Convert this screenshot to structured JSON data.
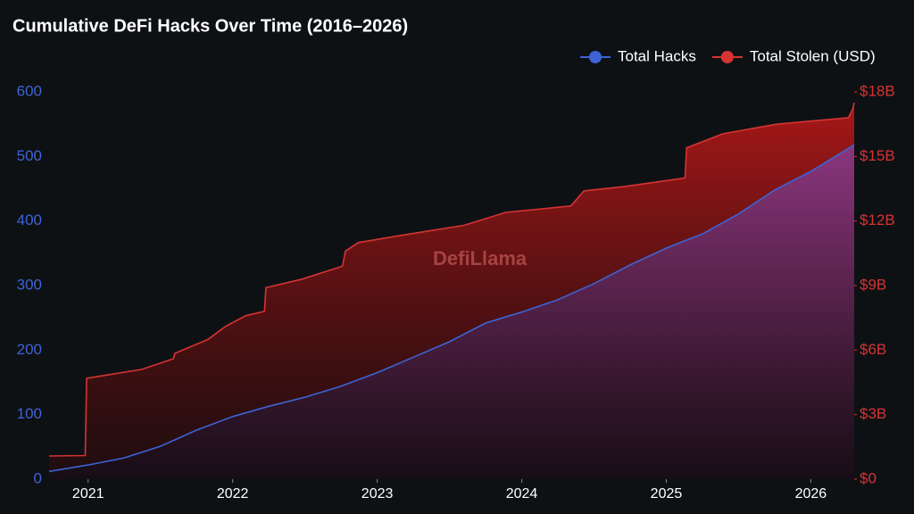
{
  "chart_data": {
    "type": "area",
    "title": "Cumulative DeFi Hacks Over Time (2016–2026)",
    "watermark": "DefiLlama",
    "legend": "top-right",
    "grid": false,
    "xlim": [
      2020.73,
      2026.3
    ],
    "xticks": [
      2021,
      2022,
      2023,
      2024,
      2025,
      2026
    ],
    "ylim": [
      0,
      600
    ],
    "yticks": [
      0,
      100,
      200,
      300,
      400,
      500,
      600
    ],
    "y2lim": [
      0,
      18
    ],
    "y2ticks": [
      {
        "value": 0,
        "label": "$0"
      },
      {
        "value": 3,
        "label": "$3B"
      },
      {
        "value": 6,
        "label": "$6B"
      },
      {
        "value": 9,
        "label": "$9B"
      },
      {
        "value": 12,
        "label": "$12B"
      },
      {
        "value": 15,
        "label": "$15B"
      },
      {
        "value": 18,
        "label": "$18B"
      }
    ],
    "series": [
      {
        "name": "Total Stolen (USD)",
        "color": "#d63333",
        "axis": "y2",
        "x": [
          2020.73,
          2020.98,
          2020.99,
          2021.37,
          2021.59,
          2021.6,
          2021.83,
          2021.95,
          2022.09,
          2022.22,
          2022.23,
          2022.48,
          2022.76,
          2022.78,
          2022.87,
          2023.23,
          2023.6,
          2023.89,
          2024.34,
          2024.43,
          2024.71,
          2025.13,
          2025.14,
          2025.39,
          2025.76,
          2026.26,
          2026.29,
          2026.3
        ],
        "values": [
          1.08,
          1.1,
          4.69,
          5.1,
          5.6,
          5.85,
          6.5,
          7.1,
          7.6,
          7.8,
          8.9,
          9.3,
          9.9,
          10.6,
          11.0,
          11.4,
          11.8,
          12.4,
          12.7,
          13.4,
          13.6,
          14.0,
          15.4,
          16.05,
          16.5,
          16.8,
          17.2,
          17.5
        ]
      },
      {
        "name": "Total Hacks",
        "color": "#3d63d6",
        "axis": "y",
        "x": [
          2020.73,
          2021.0,
          2021.25,
          2021.5,
          2021.75,
          2022.0,
          2022.25,
          2022.5,
          2022.75,
          2023.0,
          2023.25,
          2023.5,
          2023.75,
          2024.0,
          2024.25,
          2024.5,
          2024.75,
          2025.0,
          2025.25,
          2025.5,
          2025.75,
          2026.0,
          2026.3
        ],
        "values": [
          12,
          22,
          33,
          51,
          76,
          97,
          113,
          127,
          144,
          165,
          189,
          213,
          242,
          259,
          278,
          303,
          332,
          358,
          380,
          411,
          448,
          477,
          518
        ]
      }
    ]
  }
}
